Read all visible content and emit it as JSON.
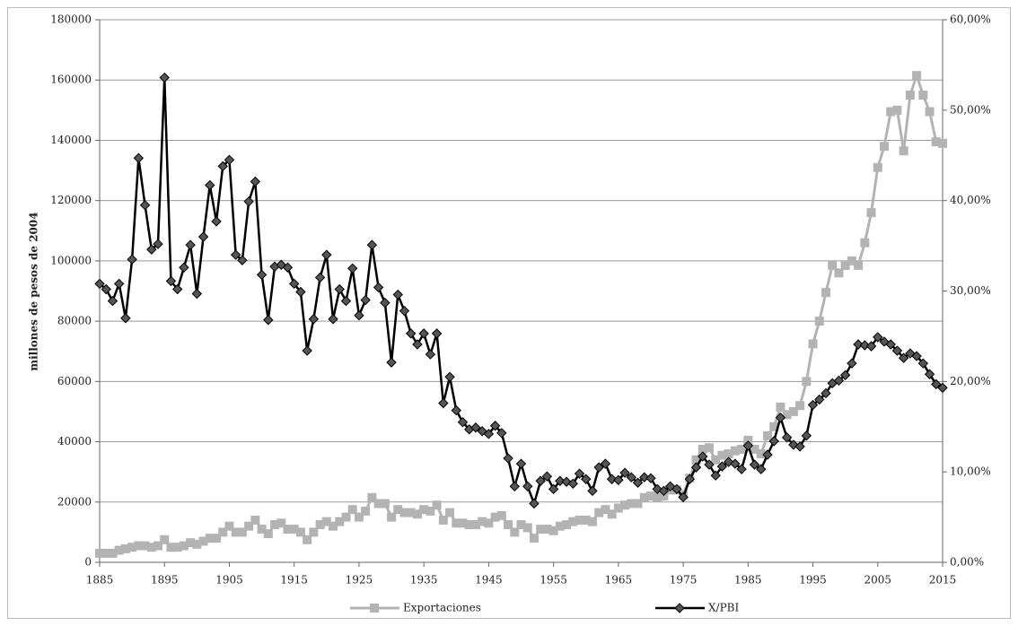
{
  "chart_data": {
    "type": "line",
    "ylabel": "millones de pesos de 2004",
    "x": [
      1885,
      1886,
      1887,
      1888,
      1889,
      1890,
      1891,
      1892,
      1893,
      1894,
      1895,
      1896,
      1897,
      1898,
      1899,
      1900,
      1901,
      1902,
      1903,
      1904,
      1905,
      1906,
      1907,
      1908,
      1909,
      1910,
      1911,
      1912,
      1913,
      1914,
      1915,
      1916,
      1917,
      1918,
      1919,
      1920,
      1921,
      1922,
      1923,
      1924,
      1925,
      1926,
      1927,
      1928,
      1929,
      1930,
      1931,
      1932,
      1933,
      1934,
      1935,
      1936,
      1937,
      1938,
      1939,
      1940,
      1941,
      1942,
      1943,
      1944,
      1945,
      1946,
      1947,
      1948,
      1949,
      1950,
      1951,
      1952,
      1953,
      1954,
      1955,
      1956,
      1957,
      1958,
      1959,
      1960,
      1961,
      1962,
      1963,
      1964,
      1965,
      1966,
      1967,
      1968,
      1969,
      1970,
      1971,
      1972,
      1973,
      1974,
      1975,
      1976,
      1977,
      1978,
      1979,
      1980,
      1981,
      1982,
      1983,
      1984,
      1985,
      1986,
      1987,
      1988,
      1989,
      1990,
      1991,
      1992,
      1993,
      1994,
      1995,
      1996,
      1997,
      1998,
      1999,
      2000,
      2001,
      2002,
      2003,
      2004,
      2005,
      2006,
      2007,
      2008,
      2009,
      2010,
      2011,
      2012,
      2013,
      2014,
      2015
    ],
    "xlim": [
      1885,
      2015
    ],
    "xticks": [
      1885,
      1895,
      1905,
      1915,
      1925,
      1935,
      1945,
      1955,
      1965,
      1975,
      1985,
      1995,
      2005,
      2015
    ],
    "ylim": [
      0,
      180000
    ],
    "yticks": [
      0,
      20000,
      40000,
      60000,
      80000,
      100000,
      120000,
      140000,
      160000,
      180000
    ],
    "y2lim": [
      0,
      60
    ],
    "y2ticks": [
      {
        "value": 0,
        "label": "0,00%"
      },
      {
        "value": 10,
        "label": "10,00%"
      },
      {
        "value": 20,
        "label": "20,00%"
      },
      {
        "value": 30,
        "label": "30,00%"
      },
      {
        "value": 40,
        "label": "40,00%"
      },
      {
        "value": 50,
        "label": "50,00%"
      },
      {
        "value": 60,
        "label": "60,00%"
      }
    ],
    "grid": true,
    "legend": "bottom",
    "series": [
      {
        "name": "Exportaciones",
        "color": "#b3b3b3",
        "marker": "square",
        "values": [
          3000,
          3000,
          3000,
          4000,
          4500,
          5000,
          5500,
          5500,
          5000,
          5500,
          7500,
          5000,
          5000,
          5500,
          6500,
          6000,
          7000,
          8000,
          8000,
          10000,
          12000,
          10000,
          10000,
          12000,
          14000,
          11000,
          9500,
          12500,
          13000,
          11000,
          11000,
          10000,
          7500,
          10000,
          12500,
          13500,
          12000,
          13500,
          15000,
          17500,
          15000,
          17000,
          21500,
          19500,
          19500,
          15000,
          17500,
          16500,
          16500,
          16000,
          17500,
          17000,
          19000,
          14000,
          16500,
          13000,
          13000,
          12500,
          12500,
          13500,
          13000,
          15000,
          15500,
          12500,
          10000,
          12500,
          11500,
          8000,
          11000,
          11000,
          10500,
          12000,
          12500,
          13500,
          14000,
          14000,
          13500,
          16500,
          17500,
          16000,
          18000,
          19000,
          19500,
          19500,
          21500,
          22000,
          21500,
          22000,
          24000,
          24000,
          22500,
          28000,
          34000,
          37500,
          38000,
          34000,
          35500,
          36000,
          37000,
          37500,
          40500,
          37500,
          36000,
          42000,
          45000,
          51500,
          49000,
          50000,
          52000,
          60000,
          72500,
          80000,
          89500,
          98500,
          96000,
          98500,
          100000,
          98500,
          106000,
          116000,
          131000,
          138000,
          149500,
          150000,
          136500,
          155000,
          161500,
          155000,
          149500,
          139500,
          139000
        ]
      },
      {
        "name": "X/PBI",
        "color": "#000000",
        "marker": "diamond",
        "axis": "y2",
        "values": [
          30.8,
          30.2,
          28.9,
          30.8,
          27.0,
          33.5,
          44.7,
          39.5,
          34.6,
          35.2,
          53.6,
          31.1,
          30.2,
          32.6,
          35.1,
          29.7,
          36.0,
          41.7,
          37.7,
          43.8,
          44.5,
          34.0,
          33.4,
          39.9,
          42.1,
          31.8,
          26.8,
          32.7,
          32.9,
          32.6,
          30.8,
          29.9,
          23.4,
          26.9,
          31.5,
          34.0,
          26.9,
          30.2,
          28.9,
          32.5,
          27.3,
          29.0,
          35.1,
          30.4,
          28.7,
          22.1,
          29.6,
          27.8,
          25.3,
          24.1,
          25.3,
          23.0,
          25.3,
          17.6,
          20.5,
          16.8,
          15.5,
          14.7,
          14.9,
          14.5,
          14.2,
          15.1,
          14.3,
          11.5,
          8.4,
          10.9,
          8.4,
          6.5,
          9.0,
          9.5,
          8.1,
          9.0,
          8.9,
          8.7,
          9.8,
          9.2,
          7.9,
          10.5,
          10.9,
          9.2,
          9.1,
          9.9,
          9.4,
          8.8,
          9.4,
          9.3,
          8.1,
          7.9,
          8.4,
          8.1,
          7.2,
          9.2,
          10.5,
          11.7,
          10.8,
          9.6,
          10.6,
          11.1,
          10.9,
          10.3,
          12.9,
          10.8,
          10.3,
          11.9,
          13.4,
          16.0,
          13.8,
          13.0,
          12.8,
          14.0,
          17.4,
          18.0,
          18.7,
          19.8,
          20.1,
          20.7,
          22.0,
          24.1,
          24.0,
          23.9,
          24.9,
          24.4,
          24.1,
          23.4,
          22.6,
          23.1,
          22.8,
          22.0,
          20.8,
          19.7,
          19.3
        ]
      }
    ]
  }
}
